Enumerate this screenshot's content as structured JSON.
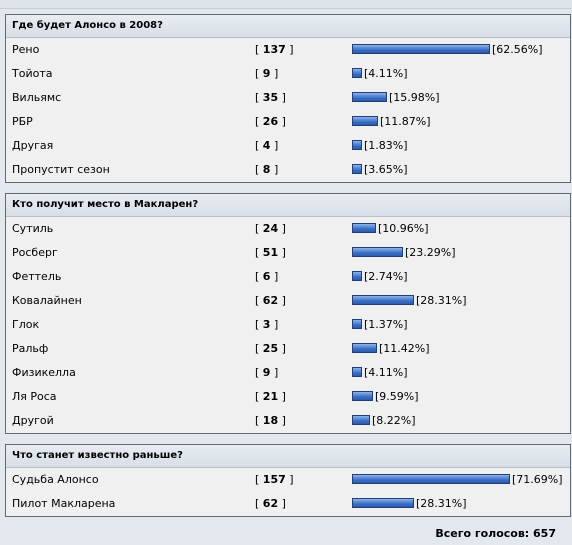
{
  "polls": [
    {
      "question": "Где будет Алонсо в 2008?",
      "options": [
        {
          "label": "Рено",
          "votes": "137",
          "percent": "62.56%",
          "fraction": 0.6256
        },
        {
          "label": "Тойота",
          "votes": "9",
          "percent": "4.11%",
          "fraction": 0.0411
        },
        {
          "label": "Вильямс",
          "votes": "35",
          "percent": "15.98%",
          "fraction": 0.1598
        },
        {
          "label": "РБР",
          "votes": "26",
          "percent": "11.87%",
          "fraction": 0.1187
        },
        {
          "label": "Другая",
          "votes": "4",
          "percent": "1.83%",
          "fraction": 0.0183
        },
        {
          "label": "Пропустит сезон",
          "votes": "8",
          "percent": "3.65%",
          "fraction": 0.0365
        }
      ]
    },
    {
      "question": "Кто получит место в Макларен?",
      "options": [
        {
          "label": "Сутиль",
          "votes": "24",
          "percent": "10.96%",
          "fraction": 0.1096
        },
        {
          "label": "Росберг",
          "votes": "51",
          "percent": "23.29%",
          "fraction": 0.2329
        },
        {
          "label": "Феттель",
          "votes": "6",
          "percent": "2.74%",
          "fraction": 0.0274
        },
        {
          "label": "Ковалайнен",
          "votes": "62",
          "percent": "28.31%",
          "fraction": 0.2831
        },
        {
          "label": "Глок",
          "votes": "3",
          "percent": "1.37%",
          "fraction": 0.0137
        },
        {
          "label": "Ральф",
          "votes": "25",
          "percent": "11.42%",
          "fraction": 0.1142
        },
        {
          "label": "Физикелла",
          "votes": "9",
          "percent": "4.11%",
          "fraction": 0.0411
        },
        {
          "label": "Ля Роса",
          "votes": "21",
          "percent": "9.59%",
          "fraction": 0.0959
        },
        {
          "label": "Другой",
          "votes": "18",
          "percent": "8.22%",
          "fraction": 0.0822
        }
      ]
    },
    {
      "question": "Что станет известно раньше?",
      "options": [
        {
          "label": "Судьба Алонсо",
          "votes": "157",
          "percent": "71.69%",
          "fraction": 0.7169
        },
        {
          "label": "Пилот Макларена",
          "votes": "62",
          "percent": "28.31%",
          "fraction": 0.2831
        }
      ]
    }
  ],
  "total": "Всего голосов: 657",
  "colors": {
    "bar": "#3a6fc8",
    "bar_border": "#1f3f7a",
    "panel": "#f0f0f0",
    "border": "#5f6a78"
  }
}
